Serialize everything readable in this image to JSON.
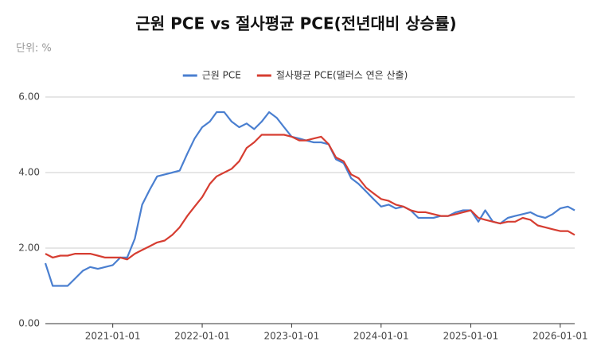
{
  "chart_data": {
    "type": "line",
    "title": "근원 PCE vs 절사평균 PCE(전년대비 상승률)",
    "subtitle": "단위: %",
    "x": [
      "2020-04-01",
      "2020-05-01",
      "2020-06-01",
      "2020-07-01",
      "2020-08-01",
      "2020-09-01",
      "2020-10-01",
      "2020-11-01",
      "2020-12-01",
      "2021-01-01",
      "2021-02-01",
      "2021-03-01",
      "2021-04-01",
      "2021-05-01",
      "2021-06-01",
      "2021-07-01",
      "2021-08-01",
      "2021-09-01",
      "2021-10-01",
      "2021-11-01",
      "2021-12-01",
      "2022-01-01",
      "2022-02-01",
      "2022-03-01",
      "2022-04-01",
      "2022-05-01",
      "2022-06-01",
      "2022-07-01",
      "2022-08-01",
      "2022-09-01",
      "2022-10-01",
      "2022-11-01",
      "2022-12-01",
      "2023-01-01",
      "2023-02-01",
      "2023-03-01",
      "2023-04-01",
      "2023-05-01",
      "2023-06-01",
      "2023-07-01",
      "2023-08-01",
      "2023-09-01",
      "2023-10-01",
      "2023-11-01",
      "2023-12-01",
      "2024-01-01",
      "2024-02-01",
      "2024-03-01",
      "2024-04-01",
      "2024-05-01",
      "2024-06-01",
      "2024-07-01",
      "2024-08-01",
      "2024-09-01",
      "2024-10-01",
      "2024-11-01",
      "2024-12-01",
      "2025-01-01",
      "2025-02-01",
      "2025-03-01",
      "2025-04-01",
      "2025-05-01",
      "2025-06-01",
      "2025-07-01",
      "2025-08-01",
      "2025-09-01",
      "2025-10-01",
      "2025-11-01",
      "2025-12-01",
      "2026-01-01",
      "2026-02-01",
      "2026-03-01"
    ],
    "series": [
      {
        "name": "근원 PCE",
        "color": "#4a7fd0",
        "values": [
          1.6,
          1.0,
          1.0,
          1.0,
          1.2,
          1.4,
          1.5,
          1.45,
          1.5,
          1.55,
          1.75,
          1.75,
          2.25,
          3.15,
          3.55,
          3.9,
          3.95,
          4.0,
          4.05,
          4.5,
          4.9,
          5.2,
          5.35,
          5.6,
          5.6,
          5.35,
          5.2,
          5.3,
          5.15,
          5.35,
          5.6,
          5.45,
          5.2,
          4.95,
          4.9,
          4.85,
          4.8,
          4.8,
          4.75,
          4.35,
          4.25,
          3.85,
          3.7,
          3.5,
          3.3,
          3.1,
          3.15,
          3.05,
          3.1,
          3.0,
          2.8,
          2.8,
          2.8,
          2.85,
          2.85,
          2.95,
          3.0,
          3.0,
          2.7,
          3.0,
          2.7,
          2.65,
          2.8,
          2.85,
          2.9,
          2.95,
          2.85,
          2.8,
          2.9,
          3.05,
          3.1,
          3.0
        ]
      },
      {
        "name": "절사평균 PCE(댈러스 연은 산출)",
        "color": "#d63d31",
        "values": [
          1.85,
          1.75,
          1.8,
          1.8,
          1.85,
          1.85,
          1.85,
          1.8,
          1.75,
          1.75,
          1.75,
          1.7,
          1.85,
          1.95,
          2.05,
          2.15,
          2.2,
          2.35,
          2.55,
          2.85,
          3.1,
          3.35,
          3.7,
          3.9,
          4.0,
          4.1,
          4.3,
          4.65,
          4.8,
          5.0,
          5.0,
          5.0,
          5.0,
          4.95,
          4.85,
          4.85,
          4.9,
          4.95,
          4.75,
          4.4,
          4.3,
          3.95,
          3.85,
          3.6,
          3.45,
          3.3,
          3.25,
          3.15,
          3.1,
          3.0,
          2.95,
          2.95,
          2.9,
          2.85,
          2.85,
          2.9,
          2.95,
          3.0,
          2.8,
          2.75,
          2.7,
          2.65,
          2.7,
          2.7,
          2.8,
          2.75,
          2.6,
          2.55,
          2.5,
          2.45,
          2.45,
          2.35
        ]
      }
    ],
    "xlim": [
      "2020-04-01",
      "2026-03-01"
    ],
    "xticks": [
      "2021-01-01",
      "2022-01-01",
      "2023-01-01",
      "2024-01-01",
      "2025-01-01",
      "2026-01-01"
    ],
    "ylim": [
      0,
      6
    ],
    "yticks": [
      {
        "value": 0,
        "label": "0.00"
      },
      {
        "value": 2,
        "label": "2.00"
      },
      {
        "value": 4,
        "label": "4.00"
      },
      {
        "value": 6,
        "label": "6.00"
      }
    ],
    "grid": true,
    "legend": "top"
  }
}
